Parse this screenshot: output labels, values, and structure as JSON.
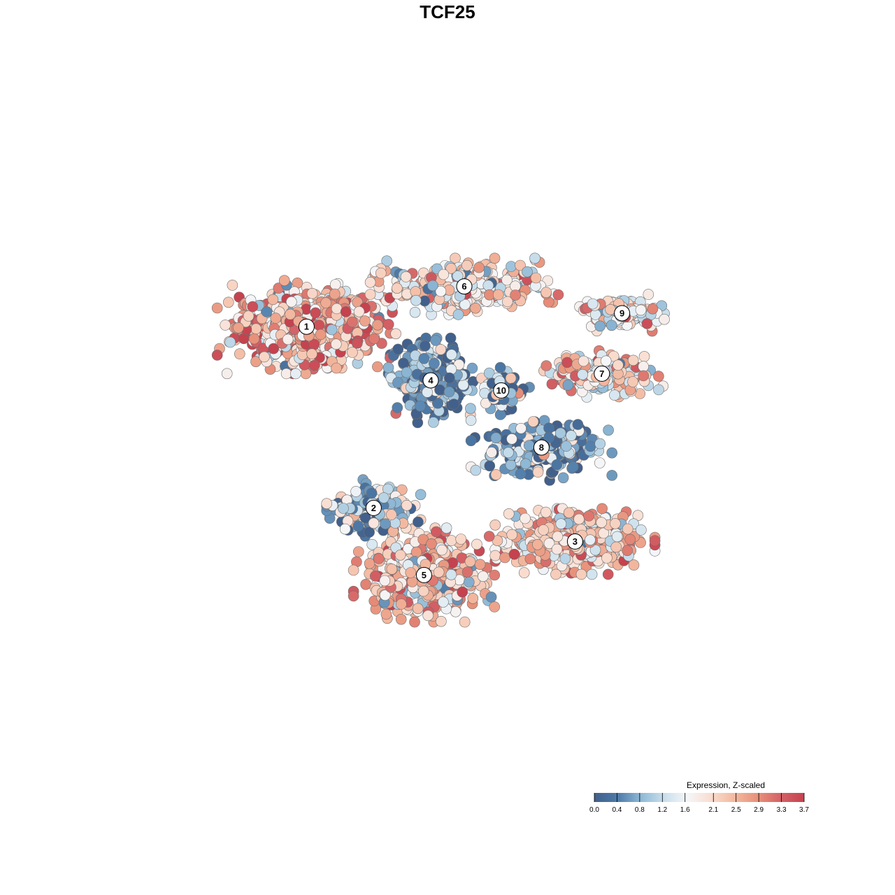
{
  "chart_data": {
    "type": "scatter",
    "title": "TCF25",
    "xlabel": "",
    "ylabel": "",
    "grid": false,
    "legend_placement": "bottom-right",
    "legend": {
      "title": "Expression, Z-scaled",
      "ticks": [
        "0.0",
        "0.4",
        "0.8",
        "1.2",
        "1.6",
        "2.1",
        "2.5",
        "2.9",
        "3.3",
        "3.7"
      ],
      "range": [
        0.0,
        3.7
      ],
      "colors": [
        "#41608b",
        "#4d7aa8",
        "#8fb9d6",
        "#c9dfec",
        "#f5f6f8",
        "#f9ddd0",
        "#f3b9a0",
        "#e8917a",
        "#d46166",
        "#c5424f"
      ]
    },
    "clusters": [
      {
        "label": "1",
        "x": -0.42,
        "y": 0.36,
        "spread_x": 0.19,
        "spread_y": 0.1,
        "mean_expression": 2.45,
        "n": 620
      },
      {
        "label": "2",
        "x": -0.22,
        "y": -0.18,
        "spread_x": 0.1,
        "spread_y": 0.06,
        "mean_expression": 0.9,
        "n": 180
      },
      {
        "label": "3",
        "x": 0.38,
        "y": -0.28,
        "spread_x": 0.17,
        "spread_y": 0.07,
        "mean_expression": 2.2,
        "n": 470
      },
      {
        "label": "4",
        "x": -0.05,
        "y": 0.2,
        "spread_x": 0.09,
        "spread_y": 0.09,
        "mean_expression": 0.55,
        "n": 330
      },
      {
        "label": "5",
        "x": -0.07,
        "y": -0.38,
        "spread_x": 0.15,
        "spread_y": 0.1,
        "mean_expression": 2.35,
        "n": 500
      },
      {
        "label": "6",
        "x": 0.05,
        "y": 0.48,
        "spread_x": 0.2,
        "spread_y": 0.06,
        "mean_expression": 1.9,
        "n": 380
      },
      {
        "label": "7",
        "x": 0.46,
        "y": 0.22,
        "spread_x": 0.13,
        "spread_y": 0.05,
        "mean_expression": 2.0,
        "n": 210
      },
      {
        "label": "8",
        "x": 0.28,
        "y": 0.0,
        "spread_x": 0.15,
        "spread_y": 0.07,
        "mean_expression": 0.7,
        "n": 260
      },
      {
        "label": "9",
        "x": 0.52,
        "y": 0.4,
        "spread_x": 0.09,
        "spread_y": 0.04,
        "mean_expression": 1.9,
        "n": 140
      },
      {
        "label": "10",
        "x": 0.16,
        "y": 0.17,
        "spread_x": 0.06,
        "spread_y": 0.05,
        "mean_expression": 0.8,
        "n": 90
      }
    ]
  }
}
